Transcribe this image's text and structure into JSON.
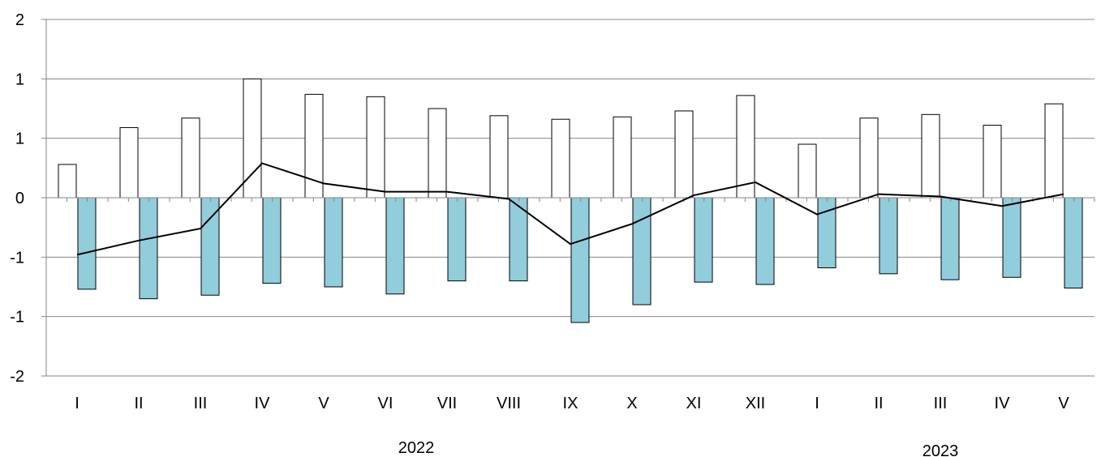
{
  "chart_data": {
    "type": "bar",
    "categories": [
      "I",
      "II",
      "III",
      "IV",
      "V",
      "VI",
      "VII",
      "VIII",
      "IX",
      "X",
      "XI",
      "XII",
      "I",
      "II",
      "III",
      "IV",
      "V"
    ],
    "groups": [
      {
        "label": "2022",
        "from": 0,
        "to": 11
      },
      {
        "label": "2023",
        "from": 12,
        "to": 16
      }
    ],
    "series": [
      {
        "kind": "bar",
        "fill": "#ffffff",
        "stroke": "#000000",
        "values": [
          0.28,
          0.59,
          0.67,
          1.0,
          0.87,
          0.85,
          0.75,
          0.69,
          0.66,
          0.68,
          0.73,
          0.86,
          0.45,
          0.67,
          0.7,
          0.61,
          0.79
        ]
      },
      {
        "kind": "bar",
        "fill": "#92cddc",
        "stroke": "#000000",
        "values": [
          -0.77,
          -0.85,
          -0.82,
          -0.72,
          -0.75,
          -0.81,
          -0.7,
          -0.7,
          -1.05,
          -0.9,
          -0.71,
          -0.73,
          -0.59,
          -0.64,
          -0.69,
          -0.67,
          -0.76
        ]
      },
      {
        "kind": "line",
        "stroke": "#000000",
        "values": [
          -0.48,
          -0.36,
          -0.26,
          0.29,
          0.12,
          0.05,
          0.05,
          -0.01,
          -0.39,
          -0.22,
          0.02,
          0.13,
          -0.14,
          0.03,
          0.01,
          -0.07,
          0.03
        ]
      }
    ],
    "ylim": [
      -1.5,
      1.5
    ],
    "yticks": [
      1.5,
      1.0,
      0.5,
      0.0,
      -0.5,
      -1.0,
      -1.5
    ],
    "ytick_labels": [
      "2",
      "1",
      "1",
      "0",
      "-1",
      "-1",
      "-2"
    ],
    "grid": true,
    "colors": {
      "grid": "#868686",
      "axis": "#868686",
      "positive_bar": "#ffffff",
      "negative_bar": "#92cddc",
      "line": "#000000"
    }
  }
}
